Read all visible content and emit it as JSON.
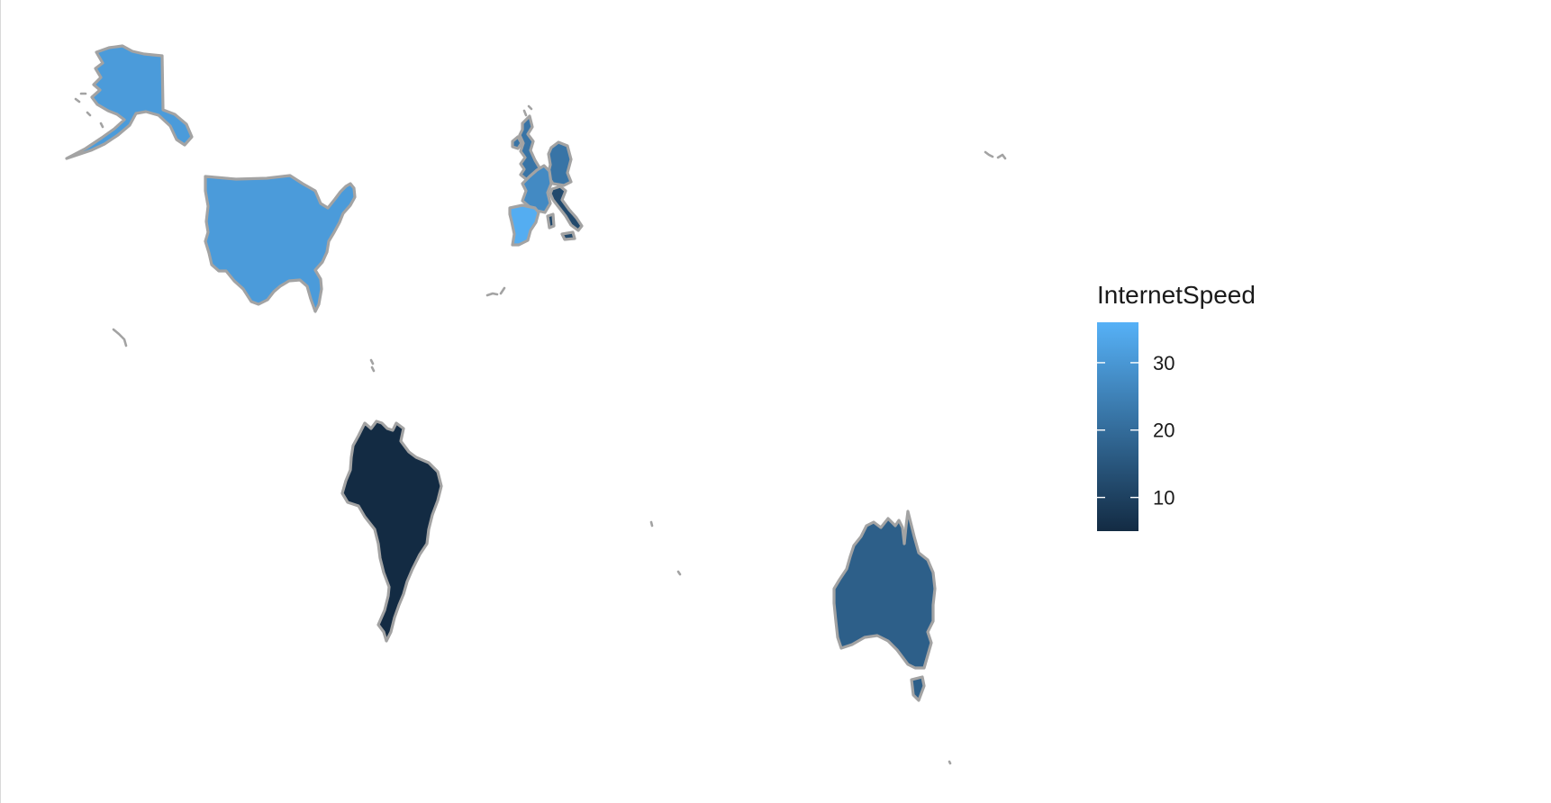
{
  "legend": {
    "title": "InternetSpeed",
    "ticks": [
      10,
      20,
      30
    ],
    "range": [
      5,
      36
    ],
    "color_low": "#132b43",
    "color_high": "#56b1f7"
  },
  "countries": [
    {
      "name": "United States",
      "value": 31
    },
    {
      "name": "Brazil",
      "value": 5
    },
    {
      "name": "Australia",
      "value": 17
    },
    {
      "name": "Spain",
      "value": 35
    },
    {
      "name": "France",
      "value": 27
    },
    {
      "name": "Germany",
      "value": 22
    },
    {
      "name": "Italy",
      "value": 12
    },
    {
      "name": "United Kingdom",
      "value": 22
    }
  ]
}
